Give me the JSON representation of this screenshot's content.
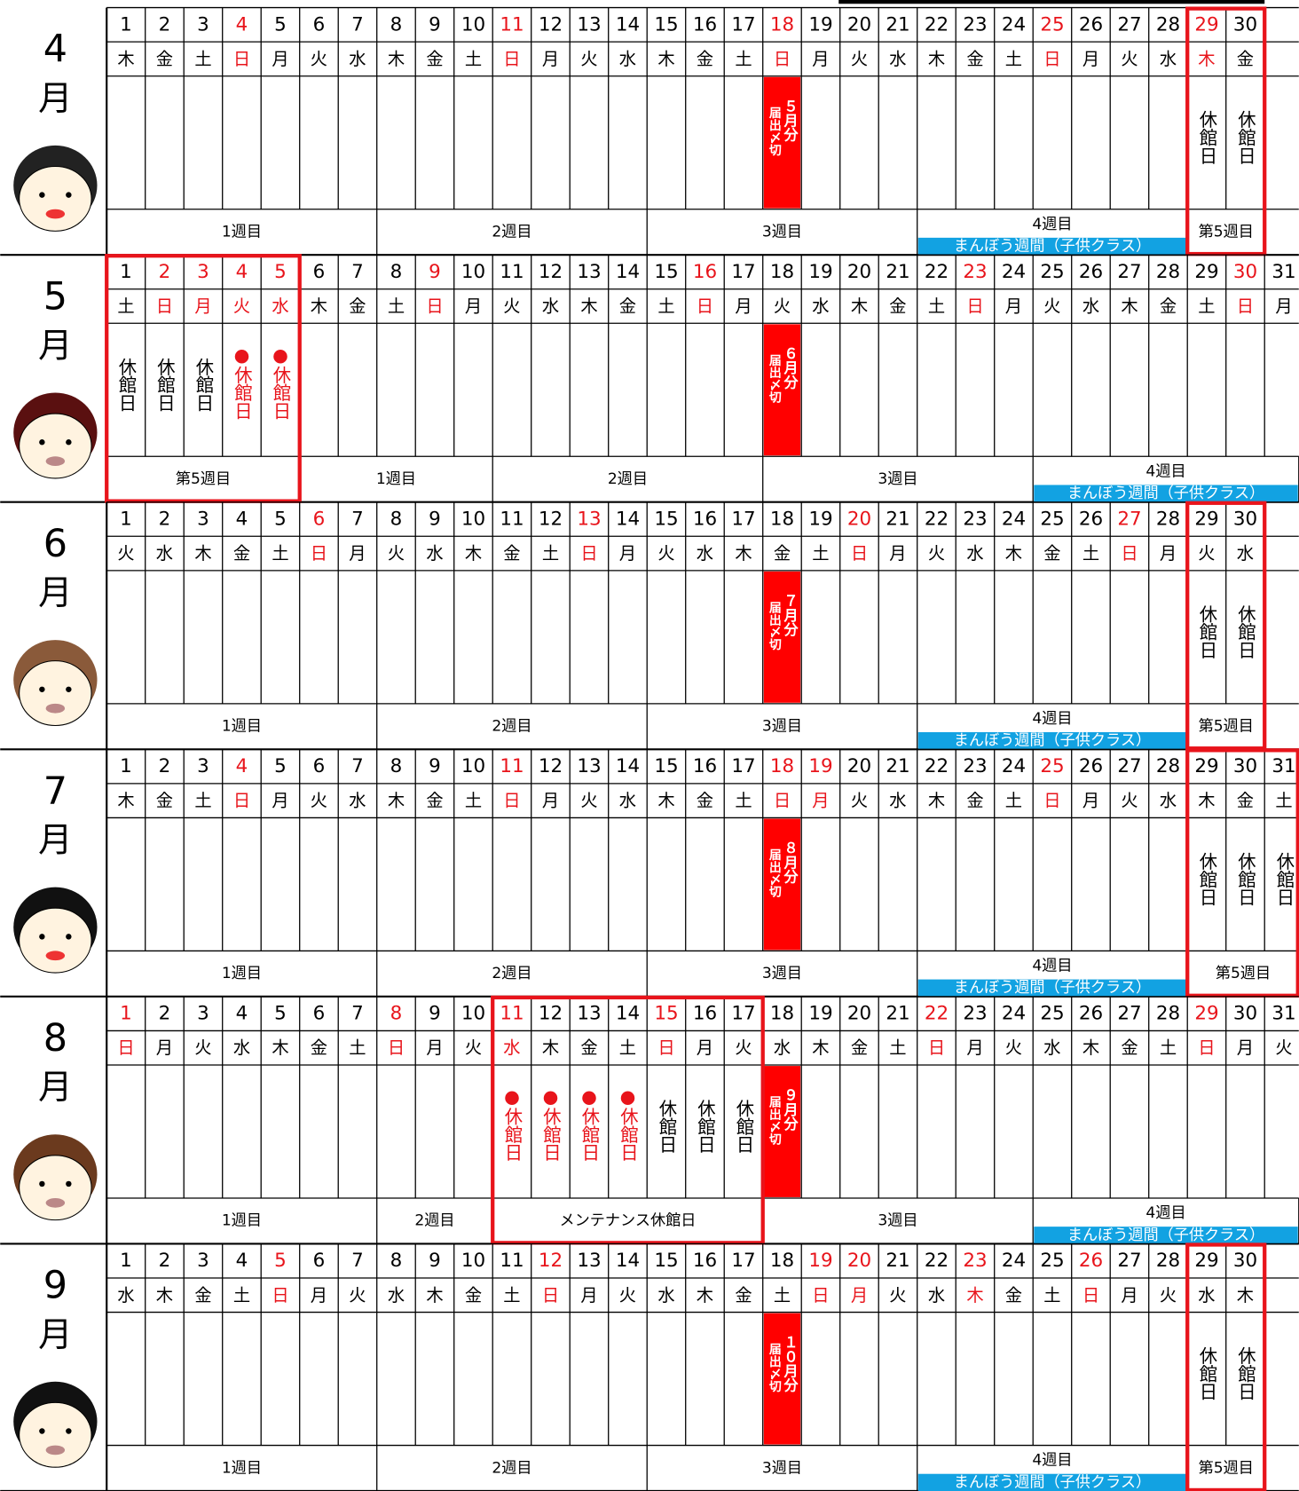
{
  "months": [
    {
      "month": "4",
      "unit": "月",
      "days": [
        {
          "d": 1,
          "w": "木"
        },
        {
          "d": 2,
          "w": "金"
        },
        {
          "d": 3,
          "w": "土"
        },
        {
          "d": 4,
          "w": "日",
          "red": true
        },
        {
          "d": 5,
          "w": "月"
        },
        {
          "d": 6,
          "w": "火"
        },
        {
          "d": 7,
          "w": "水"
        },
        {
          "d": 8,
          "w": "木"
        },
        {
          "d": 9,
          "w": "金"
        },
        {
          "d": 10,
          "w": "土"
        },
        {
          "d": 11,
          "w": "日",
          "red": true
        },
        {
          "d": 12,
          "w": "月"
        },
        {
          "d": 13,
          "w": "火"
        },
        {
          "d": 14,
          "w": "水"
        },
        {
          "d": 15,
          "w": "木"
        },
        {
          "d": 16,
          "w": "金"
        },
        {
          "d": 17,
          "w": "土"
        },
        {
          "d": 18,
          "w": "日",
          "red": true,
          "deadline": {
            "month": "５月分",
            "label": "届出〆切"
          }
        },
        {
          "d": 19,
          "w": "月"
        },
        {
          "d": 20,
          "w": "火"
        },
        {
          "d": 21,
          "w": "水"
        },
        {
          "d": 22,
          "w": "木"
        },
        {
          "d": 23,
          "w": "金"
        },
        {
          "d": 24,
          "w": "土"
        },
        {
          "d": 25,
          "w": "日",
          "red": true
        },
        {
          "d": 26,
          "w": "月"
        },
        {
          "d": 27,
          "w": "火"
        },
        {
          "d": 28,
          "w": "水"
        },
        {
          "d": 29,
          "w": "木",
          "red": true,
          "note": "休館日",
          "boxed": true
        },
        {
          "d": 30,
          "w": "金",
          "note": "休館日",
          "boxed": true
        }
      ],
      "weeks": [
        {
          "label": "1週目",
          "span": 7
        },
        {
          "label": "2週目",
          "span": 7
        },
        {
          "label": "3週目",
          "span": 7
        },
        {
          "label": "4週目",
          "span": 7,
          "band": "まんぼう週間（子供クラス）"
        },
        {
          "label": "第5週目",
          "span": 2
        }
      ]
    },
    {
      "month": "5",
      "unit": "月",
      "days": [
        {
          "d": 1,
          "w": "土",
          "note": "休館日",
          "boxed": true
        },
        {
          "d": 2,
          "w": "日",
          "red": true,
          "note": "休館日",
          "boxed": true
        },
        {
          "d": 3,
          "w": "月",
          "red": true,
          "note": "休館日",
          "boxed": true
        },
        {
          "d": 4,
          "w": "火",
          "red": true,
          "note": "●休館日",
          "note_red": true,
          "boxed": true
        },
        {
          "d": 5,
          "w": "水",
          "red": true,
          "note": "●休館日",
          "note_red": true,
          "boxed": true
        },
        {
          "d": 6,
          "w": "木"
        },
        {
          "d": 7,
          "w": "金"
        },
        {
          "d": 8,
          "w": "土"
        },
        {
          "d": 9,
          "w": "日",
          "red": true
        },
        {
          "d": 10,
          "w": "月"
        },
        {
          "d": 11,
          "w": "火"
        },
        {
          "d": 12,
          "w": "水"
        },
        {
          "d": 13,
          "w": "木"
        },
        {
          "d": 14,
          "w": "金"
        },
        {
          "d": 15,
          "w": "土"
        },
        {
          "d": 16,
          "w": "日",
          "red": true
        },
        {
          "d": 17,
          "w": "月"
        },
        {
          "d": 18,
          "w": "火",
          "deadline": {
            "month": "６月分",
            "label": "届出〆切"
          }
        },
        {
          "d": 19,
          "w": "水"
        },
        {
          "d": 20,
          "w": "木"
        },
        {
          "d": 21,
          "w": "金"
        },
        {
          "d": 22,
          "w": "土"
        },
        {
          "d": 23,
          "w": "日",
          "red": true
        },
        {
          "d": 24,
          "w": "月"
        },
        {
          "d": 25,
          "w": "火"
        },
        {
          "d": 26,
          "w": "水"
        },
        {
          "d": 27,
          "w": "木"
        },
        {
          "d": 28,
          "w": "金"
        },
        {
          "d": 29,
          "w": "土"
        },
        {
          "d": 30,
          "w": "日",
          "red": true
        },
        {
          "d": 31,
          "w": "月"
        }
      ],
      "weeks": [
        {
          "label": "第5週目",
          "span": 5
        },
        {
          "label": "1週目",
          "span": 5
        },
        {
          "label": "2週目",
          "span": 7
        },
        {
          "label": "3週目",
          "span": 7
        },
        {
          "label": "4週目",
          "span": 7,
          "band": "まんぼう週間（子供クラス）"
        }
      ]
    },
    {
      "month": "6",
      "unit": "月",
      "days": [
        {
          "d": 1,
          "w": "火"
        },
        {
          "d": 2,
          "w": "水"
        },
        {
          "d": 3,
          "w": "木"
        },
        {
          "d": 4,
          "w": "金"
        },
        {
          "d": 5,
          "w": "土"
        },
        {
          "d": 6,
          "w": "日",
          "red": true
        },
        {
          "d": 7,
          "w": "月"
        },
        {
          "d": 8,
          "w": "火"
        },
        {
          "d": 9,
          "w": "水"
        },
        {
          "d": 10,
          "w": "木"
        },
        {
          "d": 11,
          "w": "金"
        },
        {
          "d": 12,
          "w": "土"
        },
        {
          "d": 13,
          "w": "日",
          "red": true
        },
        {
          "d": 14,
          "w": "月"
        },
        {
          "d": 15,
          "w": "火"
        },
        {
          "d": 16,
          "w": "水"
        },
        {
          "d": 17,
          "w": "木"
        },
        {
          "d": 18,
          "w": "金",
          "deadline": {
            "month": "７月分",
            "label": "届出〆切"
          }
        },
        {
          "d": 19,
          "w": "土"
        },
        {
          "d": 20,
          "w": "日",
          "red": true
        },
        {
          "d": 21,
          "w": "月"
        },
        {
          "d": 22,
          "w": "火"
        },
        {
          "d": 23,
          "w": "水"
        },
        {
          "d": 24,
          "w": "木"
        },
        {
          "d": 25,
          "w": "金"
        },
        {
          "d": 26,
          "w": "土"
        },
        {
          "d": 27,
          "w": "日",
          "red": true
        },
        {
          "d": 28,
          "w": "月"
        },
        {
          "d": 29,
          "w": "火",
          "note": "休館日",
          "boxed": true
        },
        {
          "d": 30,
          "w": "水",
          "note": "休館日",
          "boxed": true
        }
      ],
      "weeks": [
        {
          "label": "1週目",
          "span": 7
        },
        {
          "label": "2週目",
          "span": 7
        },
        {
          "label": "3週目",
          "span": 7
        },
        {
          "label": "4週目",
          "span": 7,
          "band": "まんぼう週間（子供クラス）"
        },
        {
          "label": "第5週目",
          "span": 2
        }
      ]
    },
    {
      "month": "7",
      "unit": "月",
      "days": [
        {
          "d": 1,
          "w": "木"
        },
        {
          "d": 2,
          "w": "金"
        },
        {
          "d": 3,
          "w": "土"
        },
        {
          "d": 4,
          "w": "日",
          "red": true
        },
        {
          "d": 5,
          "w": "月"
        },
        {
          "d": 6,
          "w": "火"
        },
        {
          "d": 7,
          "w": "水"
        },
        {
          "d": 8,
          "w": "木"
        },
        {
          "d": 9,
          "w": "金"
        },
        {
          "d": 10,
          "w": "土"
        },
        {
          "d": 11,
          "w": "日",
          "red": true
        },
        {
          "d": 12,
          "w": "月"
        },
        {
          "d": 13,
          "w": "火"
        },
        {
          "d": 14,
          "w": "水"
        },
        {
          "d": 15,
          "w": "木"
        },
        {
          "d": 16,
          "w": "金"
        },
        {
          "d": 17,
          "w": "土"
        },
        {
          "d": 18,
          "w": "日",
          "red": true,
          "deadline": {
            "month": "８月分",
            "label": "届出〆切"
          }
        },
        {
          "d": 19,
          "w": "月",
          "red": true
        },
        {
          "d": 20,
          "w": "火"
        },
        {
          "d": 21,
          "w": "水"
        },
        {
          "d": 22,
          "w": "木"
        },
        {
          "d": 23,
          "w": "金"
        },
        {
          "d": 24,
          "w": "土"
        },
        {
          "d": 25,
          "w": "日",
          "red": true
        },
        {
          "d": 26,
          "w": "月"
        },
        {
          "d": 27,
          "w": "火"
        },
        {
          "d": 28,
          "w": "水"
        },
        {
          "d": 29,
          "w": "木",
          "note": "休館日",
          "boxed": true
        },
        {
          "d": 30,
          "w": "金",
          "note": "休館日",
          "boxed": true
        },
        {
          "d": 31,
          "w": "土",
          "note": "休館日",
          "boxed": true
        }
      ],
      "weeks": [
        {
          "label": "1週目",
          "span": 7
        },
        {
          "label": "2週目",
          "span": 7
        },
        {
          "label": "3週目",
          "span": 7
        },
        {
          "label": "4週目",
          "span": 7,
          "band": "まんぼう週間（子供クラス）"
        },
        {
          "label": "第5週目",
          "span": 3
        }
      ]
    },
    {
      "month": "8",
      "unit": "月",
      "days": [
        {
          "d": 1,
          "w": "日",
          "red": true
        },
        {
          "d": 2,
          "w": "月"
        },
        {
          "d": 3,
          "w": "火"
        },
        {
          "d": 4,
          "w": "水"
        },
        {
          "d": 5,
          "w": "木"
        },
        {
          "d": 6,
          "w": "金"
        },
        {
          "d": 7,
          "w": "土"
        },
        {
          "d": 8,
          "w": "日",
          "red": true
        },
        {
          "d": 9,
          "w": "月"
        },
        {
          "d": 10,
          "w": "火"
        },
        {
          "d": 11,
          "w": "水",
          "red": true,
          "note": "●休館日",
          "note_red": true,
          "boxed": true
        },
        {
          "d": 12,
          "w": "木",
          "note": "●休館日",
          "note_red": true,
          "boxed": true
        },
        {
          "d": 13,
          "w": "金",
          "note": "●休館日",
          "note_red": true,
          "boxed": true
        },
        {
          "d": 14,
          "w": "土",
          "note": "●休館日",
          "note_red": true,
          "boxed": true
        },
        {
          "d": 15,
          "w": "日",
          "red": true,
          "note": "休館日",
          "boxed": true
        },
        {
          "d": 16,
          "w": "月",
          "note": "休館日",
          "boxed": true
        },
        {
          "d": 17,
          "w": "火",
          "note": "休館日",
          "boxed": true
        },
        {
          "d": 18,
          "w": "水",
          "deadline": {
            "month": "９月分",
            "label": "届出〆切"
          }
        },
        {
          "d": 19,
          "w": "木"
        },
        {
          "d": 20,
          "w": "金"
        },
        {
          "d": 21,
          "w": "土"
        },
        {
          "d": 22,
          "w": "日",
          "red": true
        },
        {
          "d": 23,
          "w": "月"
        },
        {
          "d": 24,
          "w": "火"
        },
        {
          "d": 25,
          "w": "水"
        },
        {
          "d": 26,
          "w": "木"
        },
        {
          "d": 27,
          "w": "金"
        },
        {
          "d": 28,
          "w": "土"
        },
        {
          "d": 29,
          "w": "日",
          "red": true
        },
        {
          "d": 30,
          "w": "月"
        },
        {
          "d": 31,
          "w": "火"
        }
      ],
      "weeks": [
        {
          "label": "1週目",
          "span": 7
        },
        {
          "label": "2週目",
          "span": 3
        },
        {
          "label": "メンテナンス休館日",
          "span": 7
        },
        {
          "label": "3週目",
          "span": 7
        },
        {
          "label": "4週目",
          "span": 7,
          "band": "まんぼう週間（子供クラス）"
        }
      ]
    },
    {
      "month": "9",
      "unit": "月",
      "days": [
        {
          "d": 1,
          "w": "水"
        },
        {
          "d": 2,
          "w": "木"
        },
        {
          "d": 3,
          "w": "金"
        },
        {
          "d": 4,
          "w": "土"
        },
        {
          "d": 5,
          "w": "日",
          "red": true
        },
        {
          "d": 6,
          "w": "月"
        },
        {
          "d": 7,
          "w": "火"
        },
        {
          "d": 8,
          "w": "水"
        },
        {
          "d": 9,
          "w": "木"
        },
        {
          "d": 10,
          "w": "金"
        },
        {
          "d": 11,
          "w": "土"
        },
        {
          "d": 12,
          "w": "日",
          "red": true
        },
        {
          "d": 13,
          "w": "月"
        },
        {
          "d": 14,
          "w": "火"
        },
        {
          "d": 15,
          "w": "水"
        },
        {
          "d": 16,
          "w": "木"
        },
        {
          "d": 17,
          "w": "金"
        },
        {
          "d": 18,
          "w": "土",
          "deadline": {
            "month": "１０月分",
            "label": "届出〆切"
          }
        },
        {
          "d": 19,
          "w": "日",
          "red": true
        },
        {
          "d": 20,
          "w": "月",
          "red": true
        },
        {
          "d": 21,
          "w": "火"
        },
        {
          "d": 22,
          "w": "水"
        },
        {
          "d": 23,
          "w": "木",
          "red": true
        },
        {
          "d": 24,
          "w": "金"
        },
        {
          "d": 25,
          "w": "土"
        },
        {
          "d": 26,
          "w": "日",
          "red": true
        },
        {
          "d": 27,
          "w": "月"
        },
        {
          "d": 28,
          "w": "火"
        },
        {
          "d": 29,
          "w": "水",
          "note": "休館日",
          "boxed": true
        },
        {
          "d": 30,
          "w": "木",
          "note": "休館日",
          "boxed": true
        }
      ],
      "weeks": [
        {
          "label": "1週目",
          "span": 7
        },
        {
          "label": "2週目",
          "span": 7
        },
        {
          "label": "3週目",
          "span": 7
        },
        {
          "label": "4週目",
          "span": 7,
          "band": "まんぼう週間（子供クラス）"
        },
        {
          "label": "第5週目",
          "span": 2
        }
      ]
    }
  ]
}
